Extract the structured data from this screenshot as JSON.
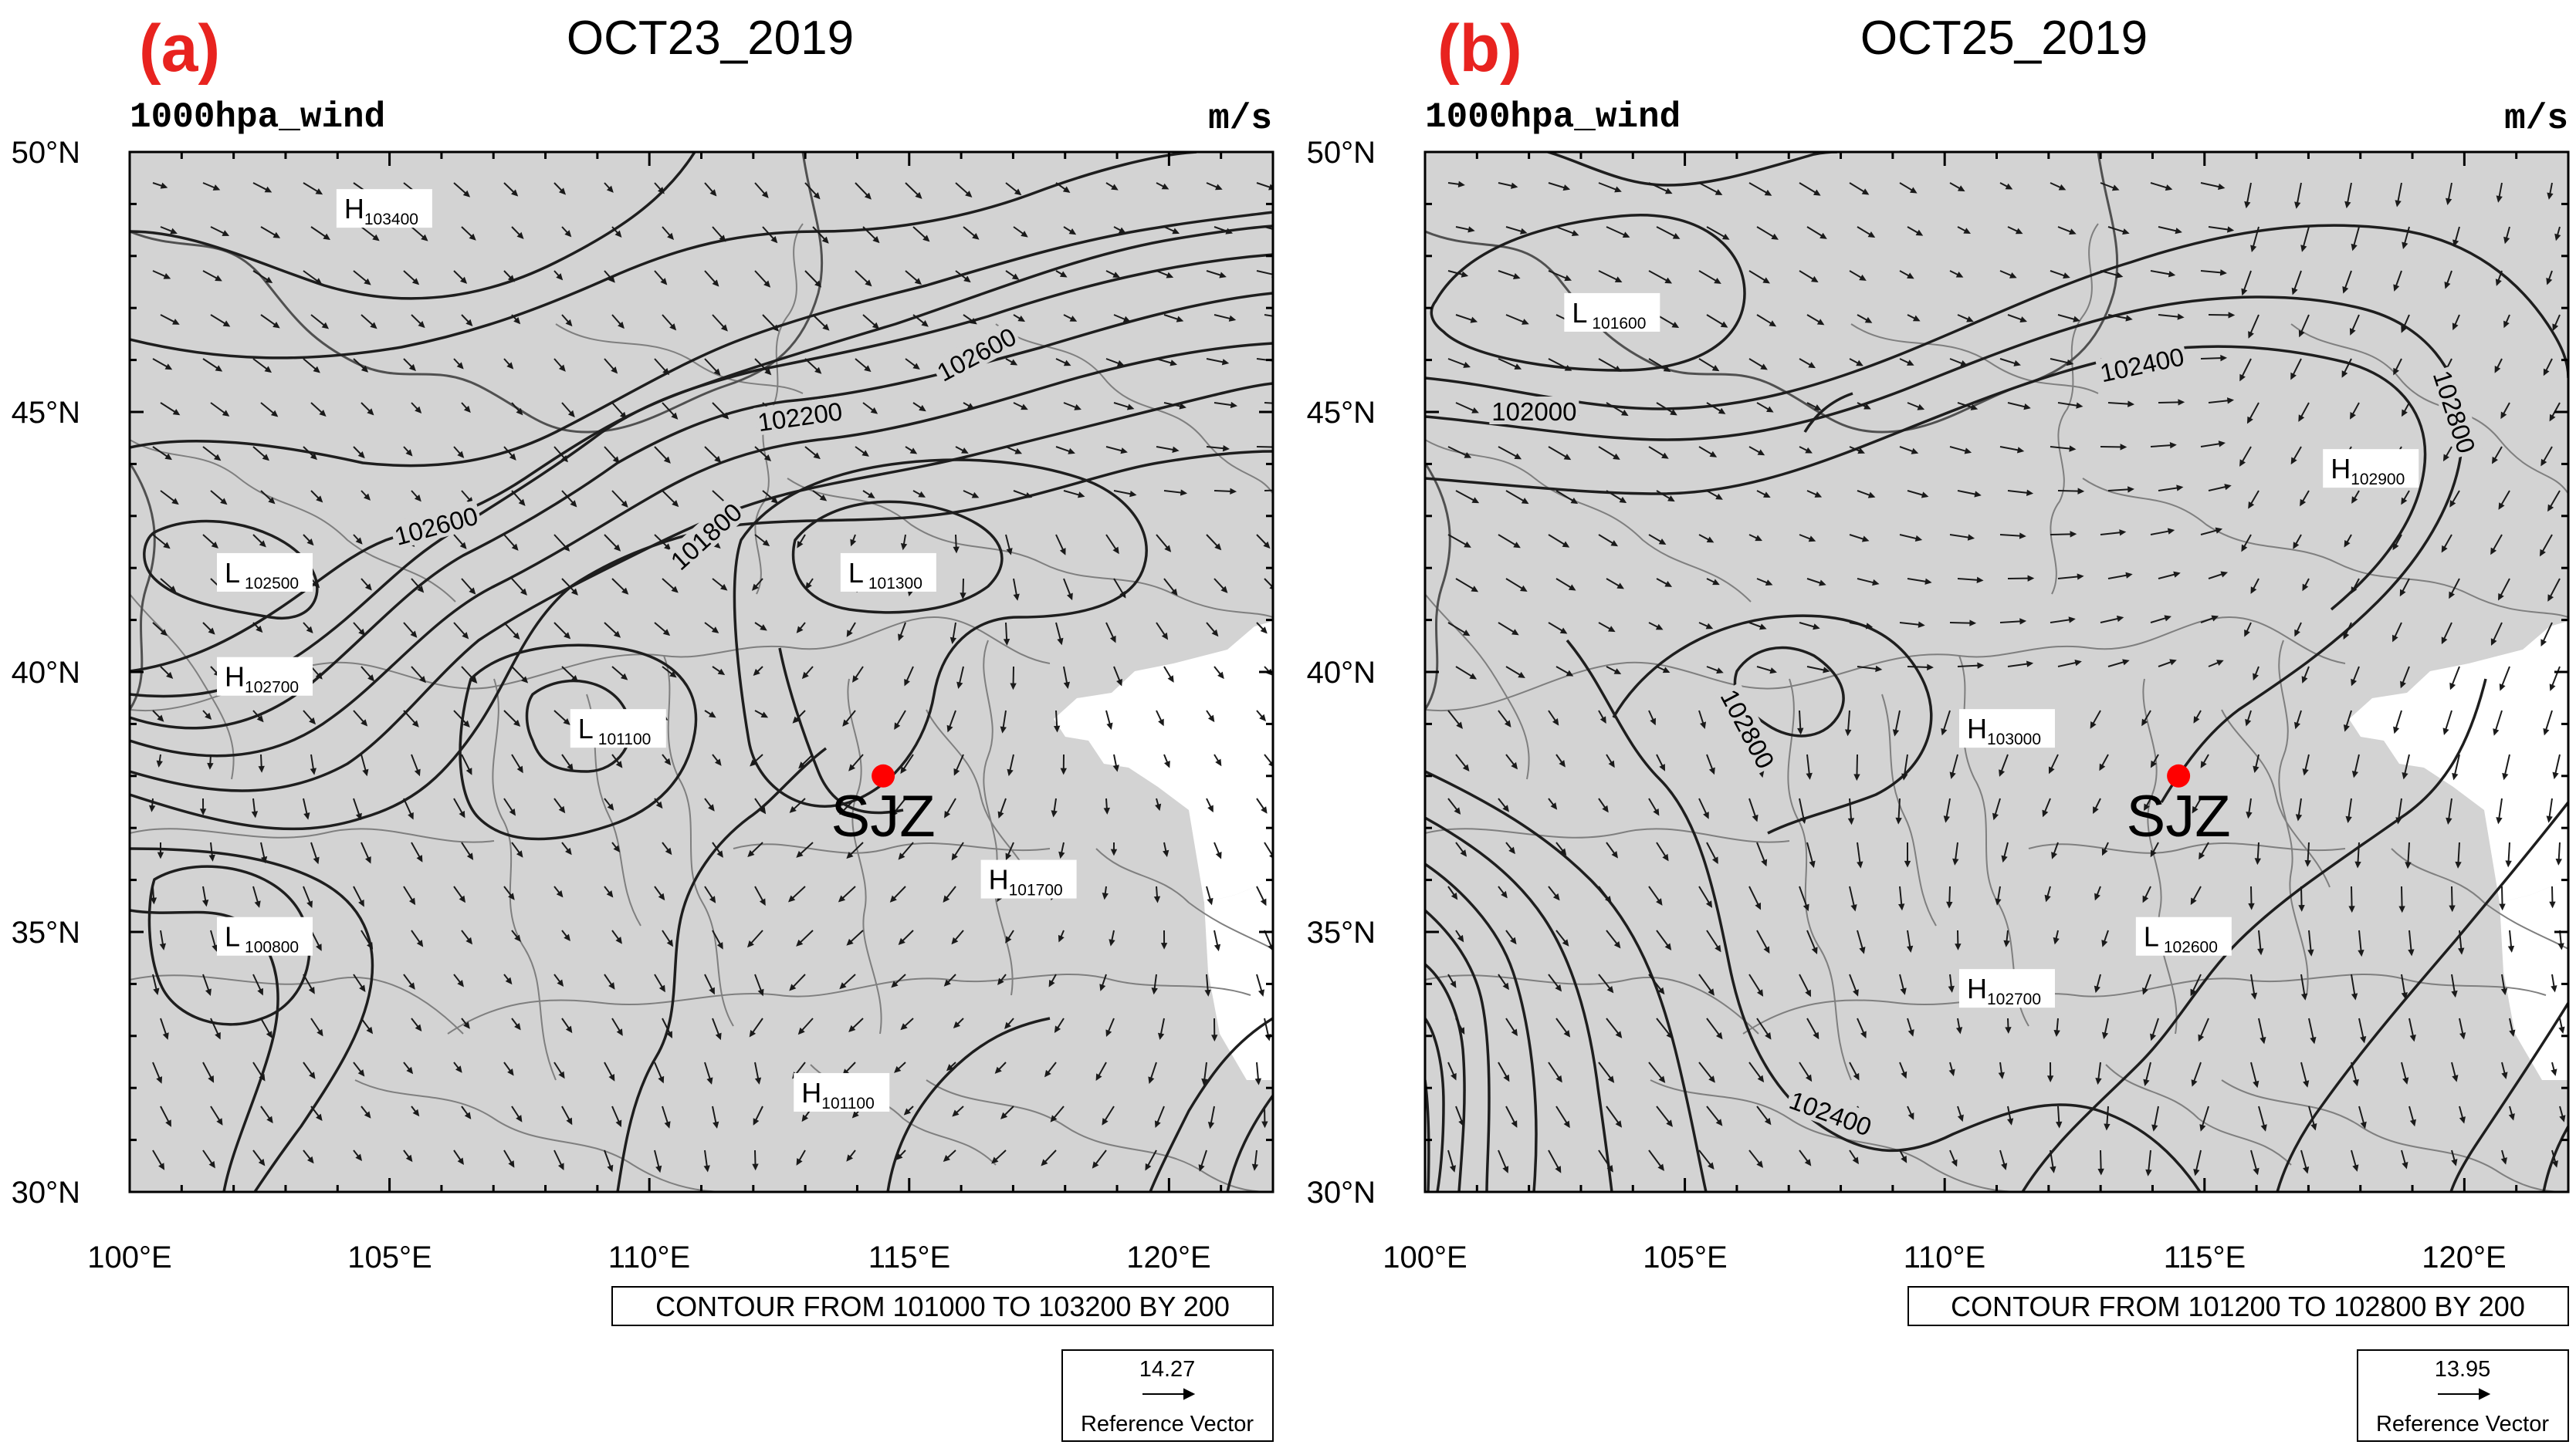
{
  "panels": [
    {
      "tag": "(a)",
      "date": "OCT23_2019",
      "field_label": "1000hpa_wind",
      "units": "m/s",
      "lat_ticks": [
        "50°N",
        "45°N",
        "40°N",
        "35°N",
        "30°N"
      ],
      "lon_ticks": [
        "100°E",
        "105°E",
        "110°E",
        "115°E",
        "120°E"
      ],
      "station": {
        "name": "SJZ",
        "lon": 114.5,
        "lat": 38.0
      },
      "centers": [
        {
          "type": "H",
          "value": "103400",
          "lon": 104.9,
          "lat": 48.9
        },
        {
          "type": "L",
          "value": "102500",
          "lon": 102.6,
          "lat": 41.9
        },
        {
          "type": "H",
          "value": "102700",
          "lon": 102.6,
          "lat": 39.9
        },
        {
          "type": "L",
          "value": "101100",
          "lon": 109.4,
          "lat": 38.9
        },
        {
          "type": "L",
          "value": "101300",
          "lon": 114.6,
          "lat": 41.9
        },
        {
          "type": "H",
          "value": "101700",
          "lon": 117.3,
          "lat": 36.0
        },
        {
          "type": "L",
          "value": "100800",
          "lon": 102.6,
          "lat": 34.9
        },
        {
          "type": "H",
          "value": "101100",
          "lon": 113.7,
          "lat": 31.9
        }
      ],
      "contour_labels": [
        {
          "text": "102600",
          "lon": 116.3,
          "lat": 46.1,
          "rot": -28
        },
        {
          "text": "102200",
          "lon": 112.9,
          "lat": 44.9,
          "rot": -8
        },
        {
          "text": "102600",
          "lon": 105.9,
          "lat": 42.8,
          "rot": -15
        },
        {
          "text": "101800",
          "lon": 111.1,
          "lat": 42.6,
          "rot": -42
        }
      ],
      "contour_info": "CONTOUR FROM 101000 TO 103200 BY 200",
      "ref_vector": {
        "value": "14.27",
        "label": "Reference Vector"
      }
    },
    {
      "tag": "(b)",
      "date": "OCT25_2019",
      "field_label": "1000hpa_wind",
      "units": "m/s",
      "lat_ticks": [
        "50°N",
        "45°N",
        "40°N",
        "35°N",
        "30°N"
      ],
      "lon_ticks": [
        "100°E",
        "105°E",
        "110°E",
        "115°E",
        "120°E"
      ],
      "station": {
        "name": "SJZ",
        "lon": 114.5,
        "lat": 38.0
      },
      "centers": [
        {
          "type": "L",
          "value": "101600",
          "lon": 103.6,
          "lat": 46.9
        },
        {
          "type": "H",
          "value": "102900",
          "lon": 118.2,
          "lat": 43.9
        },
        {
          "type": "H",
          "value": "103000",
          "lon": 111.2,
          "lat": 38.9
        },
        {
          "type": "L",
          "value": "102600",
          "lon": 114.6,
          "lat": 34.9
        },
        {
          "type": "H",
          "value": "102700",
          "lon": 111.2,
          "lat": 33.9
        }
      ],
      "contour_labels": [
        {
          "text": "102000",
          "lon": 102.1,
          "lat": 45.0,
          "rot": 0
        },
        {
          "text": "102400",
          "lon": 113.8,
          "lat": 45.9,
          "rot": -12
        },
        {
          "text": "102800",
          "lon": 119.8,
          "lat": 45.0,
          "rot": 72
        },
        {
          "text": "102800",
          "lon": 106.2,
          "lat": 38.9,
          "rot": 62
        },
        {
          "text": "102400",
          "lon": 107.8,
          "lat": 31.5,
          "rot": 20
        }
      ],
      "contour_info": "CONTOUR FROM 101200 TO 102800 BY 200",
      "ref_vector": {
        "value": "13.95",
        "label": "Reference Vector"
      }
    }
  ]
}
